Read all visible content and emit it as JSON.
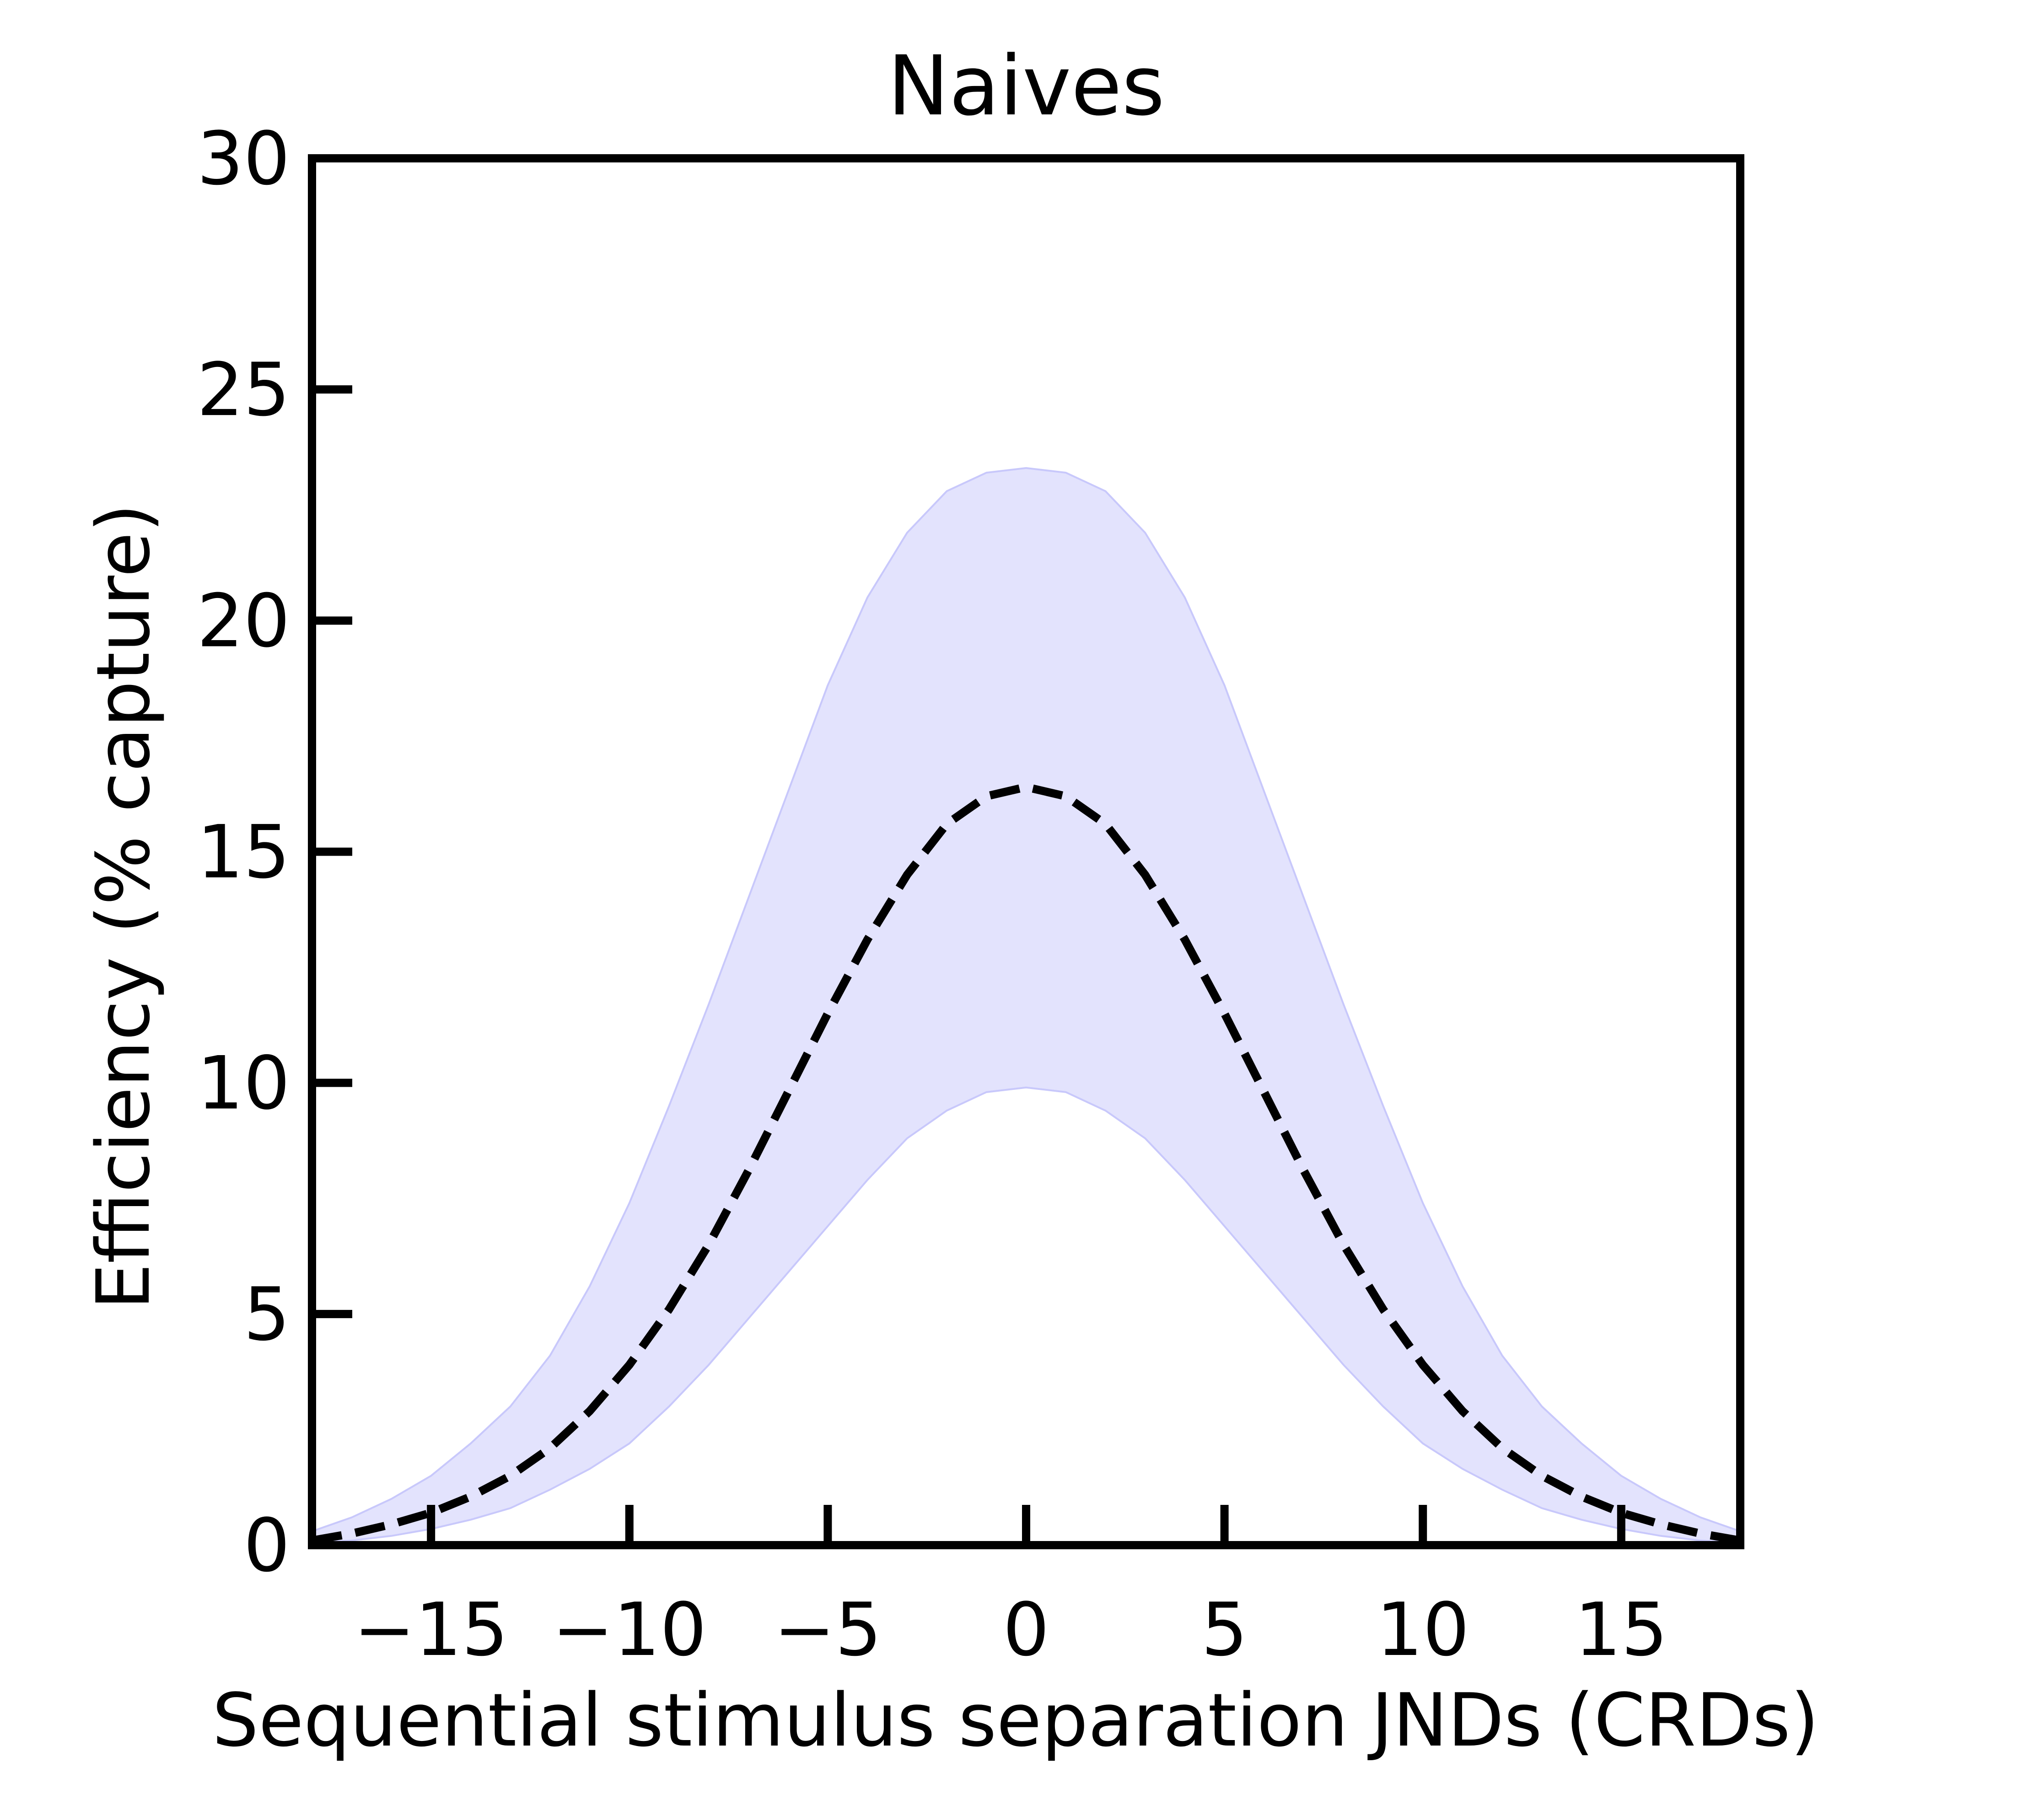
{
  "chart_data": {
    "type": "line",
    "title": "Naives",
    "xlabel": "Sequential stimulus separation JNDs (CRDs)",
    "ylabel": "Efficiency (% capture)",
    "xlim": [
      -18,
      18
    ],
    "ylim": [
      0,
      30
    ],
    "xticks": [
      -15,
      -10,
      -5,
      0,
      5,
      10,
      15
    ],
    "xtick_labels": [
      "−15",
      "−10",
      "−5",
      "0",
      "5",
      "10",
      "15"
    ],
    "yticks": [
      0,
      5,
      10,
      15,
      20,
      25,
      30
    ],
    "ytick_labels": [
      "0",
      "5",
      "10",
      "15",
      "20",
      "25",
      "30"
    ],
    "grid": false,
    "x": [
      -18,
      -17,
      -16,
      -15,
      -14,
      -13,
      -12,
      -11,
      -10,
      -9,
      -8,
      -7,
      -6,
      -5,
      -4,
      -3,
      -2,
      -1,
      0,
      1,
      2,
      3,
      4,
      5,
      6,
      7,
      8,
      9,
      10,
      11,
      12,
      13,
      14,
      15,
      16,
      17,
      18
    ],
    "series": [
      {
        "style": "dashed",
        "color": "#000000",
        "values": [
          0.1,
          0.25,
          0.45,
          0.7,
          1.05,
          1.5,
          2.1,
          2.9,
          3.9,
          5.1,
          6.5,
          8.1,
          9.8,
          11.5,
          13.1,
          14.5,
          15.6,
          16.2,
          16.4,
          16.2,
          15.6,
          14.5,
          13.1,
          11.5,
          9.8,
          8.1,
          6.5,
          5.1,
          3.9,
          2.9,
          2.1,
          1.5,
          1.05,
          0.7,
          0.45,
          0.25,
          0.1
        ]
      }
    ],
    "band": {
      "color": "#e3e3fd",
      "edge_color": "#c8c8fb",
      "upper": [
        0.3,
        0.6,
        1.0,
        1.5,
        2.2,
        3.0,
        4.1,
        5.6,
        7.4,
        9.5,
        11.7,
        14.0,
        16.3,
        18.6,
        20.5,
        21.9,
        22.8,
        23.2,
        23.3,
        23.2,
        22.8,
        21.9,
        20.5,
        18.6,
        16.3,
        14.0,
        11.7,
        9.5,
        7.4,
        5.6,
        4.1,
        3.0,
        2.2,
        1.5,
        1.0,
        0.6,
        0.3
      ],
      "lower": [
        0.05,
        0.1,
        0.2,
        0.35,
        0.55,
        0.8,
        1.2,
        1.65,
        2.2,
        3.0,
        3.9,
        4.9,
        5.9,
        6.9,
        7.9,
        8.8,
        9.4,
        9.8,
        9.9,
        9.8,
        9.4,
        8.8,
        7.9,
        6.9,
        5.9,
        4.9,
        3.9,
        3.0,
        2.2,
        1.65,
        1.2,
        0.8,
        0.55,
        0.35,
        0.2,
        0.1,
        0.05
      ]
    }
  }
}
